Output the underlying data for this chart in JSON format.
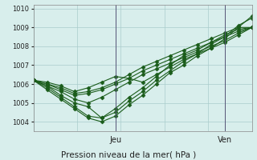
{
  "title": "Pression niveau de la mer( hPa )",
  "xlabel_jeu": "Jeu",
  "xlabel_ven": "Ven",
  "ylim": [
    1003.5,
    1010.2
  ],
  "yticks": [
    1004,
    1005,
    1006,
    1007,
    1008,
    1009,
    1010
  ],
  "background_color": "#d8eeec",
  "grid_color": "#aacccc",
  "line_color": "#1a5c1a",
  "marker_color": "#1a5c1a",
  "series": [
    [
      1006.2,
      1005.9,
      1005.4,
      1005.0,
      1004.8,
      1004.2,
      1004.7,
      1005.3,
      1005.8,
      1006.4,
      1007.0,
      1007.5,
      1007.8,
      1008.2,
      1008.6,
      1008.9,
      1009.0
    ],
    [
      1006.2,
      1006.0,
      1005.8,
      1005.5,
      1005.6,
      1005.8,
      1006.1,
      1006.5,
      1006.9,
      1007.2,
      1007.5,
      1007.8,
      1008.1,
      1008.4,
      1008.7,
      1009.0,
      1009.0
    ],
    [
      1006.2,
      1005.9,
      1005.6,
      1005.2,
      1005.0,
      1005.3,
      1005.7,
      1006.1,
      1006.5,
      1006.8,
      1007.1,
      1007.4,
      1007.7,
      1008.0,
      1008.3,
      1008.7,
      1009.0
    ],
    [
      1006.2,
      1006.0,
      1005.7,
      1005.4,
      1005.5,
      1005.7,
      1006.0,
      1006.3,
      1006.7,
      1007.0,
      1007.3,
      1007.6,
      1007.9,
      1008.2,
      1008.5,
      1008.8,
      1009.0
    ],
    [
      1006.2,
      1005.8,
      1005.3,
      1004.8,
      1004.3,
      1004.2,
      1004.5,
      1005.1,
      1005.6,
      1006.2,
      1006.7,
      1007.2,
      1007.6,
      1008.1,
      1008.5,
      1009.1,
      1009.5
    ],
    [
      1006.2,
      1005.7,
      1005.2,
      1004.7,
      1004.2,
      1004.0,
      1004.3,
      1004.9,
      1005.4,
      1006.0,
      1006.6,
      1007.0,
      1007.5,
      1007.9,
      1008.4,
      1009.0,
      1009.6
    ],
    [
      1006.2,
      1006.1,
      1005.9,
      1005.6,
      1005.8,
      1006.1,
      1006.4,
      1006.3,
      1006.1,
      1006.5,
      1006.9,
      1007.3,
      1007.6,
      1007.9,
      1008.2,
      1008.6,
      1009.0
    ]
  ],
  "n_points": 17,
  "jeu_tick": 6,
  "ven_tick": 14
}
